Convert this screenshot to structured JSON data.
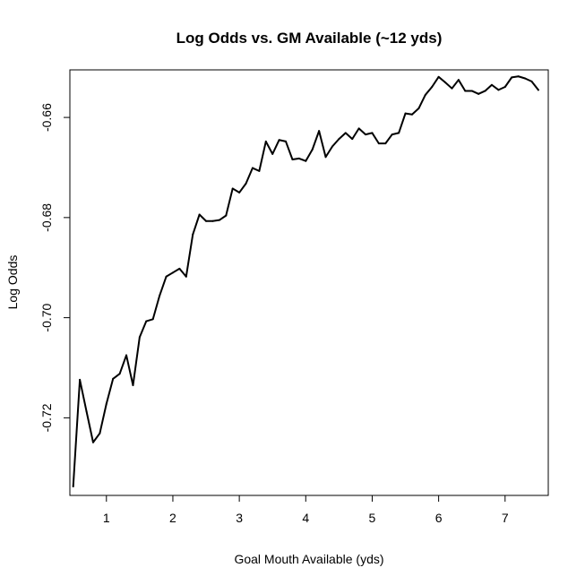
{
  "chart_data": {
    "type": "line",
    "title": "Log Odds vs. GM Available (~12 yds)",
    "xlabel": "Goal Mouth Available (yds)",
    "ylabel": "Log Odds",
    "xlim": [
      0.45,
      7.65
    ],
    "ylim": [
      -0.7355,
      -0.6505
    ],
    "x_ticks": [
      1,
      2,
      3,
      4,
      5,
      6,
      7
    ],
    "x_tick_labels": [
      "1",
      "2",
      "3",
      "4",
      "5",
      "6",
      "7"
    ],
    "y_ticks": [
      -0.72,
      -0.7,
      -0.68,
      -0.66
    ],
    "y_tick_labels": [
      "-0.72",
      "-0.70",
      "-0.68",
      "-0.66"
    ],
    "grid": false,
    "line_color": "#000000",
    "series": [
      {
        "x": [
          0.5,
          0.6,
          0.7,
          0.8,
          0.9,
          1.0,
          1.1,
          1.2,
          1.3,
          1.4,
          1.5,
          1.6,
          1.7,
          1.8,
          1.9,
          2.0,
          2.1,
          2.2,
          2.3,
          2.4,
          2.5,
          2.6,
          2.7,
          2.8,
          2.9,
          3.0,
          3.1,
          3.2,
          3.3,
          3.4,
          3.5,
          3.6,
          3.7,
          3.8,
          3.9,
          4.0,
          4.1,
          4.2,
          4.3,
          4.4,
          4.5,
          4.6,
          4.7,
          4.8,
          4.9,
          5.0,
          5.1,
          5.2,
          5.3,
          5.4,
          5.5,
          5.6,
          5.7,
          5.8,
          5.9,
          6.0,
          6.1,
          6.2,
          6.3,
          6.4,
          6.5,
          6.6,
          6.7,
          6.8,
          6.9,
          7.0,
          7.1,
          7.2,
          7.3,
          7.4,
          7.5
        ],
        "y": [
          -0.7337,
          -0.7124,
          -0.7187,
          -0.7249,
          -0.7231,
          -0.7172,
          -0.7122,
          -0.7112,
          -0.7075,
          -0.7135,
          -0.7039,
          -0.7007,
          -0.7003,
          -0.6956,
          -0.6918,
          -0.691,
          -0.6902,
          -0.6918,
          -0.6834,
          -0.6794,
          -0.6807,
          -0.6807,
          -0.6805,
          -0.6796,
          -0.6742,
          -0.675,
          -0.6732,
          -0.6701,
          -0.6707,
          -0.6648,
          -0.6673,
          -0.6645,
          -0.6648,
          -0.6684,
          -0.6682,
          -0.6687,
          -0.6664,
          -0.6627,
          -0.6679,
          -0.6658,
          -0.6643,
          -0.6631,
          -0.6643,
          -0.6622,
          -0.6634,
          -0.6631,
          -0.6652,
          -0.6652,
          -0.6634,
          -0.6631,
          -0.6592,
          -0.6594,
          -0.6582,
          -0.6555,
          -0.6539,
          -0.6519,
          -0.653,
          -0.6542,
          -0.6525,
          -0.6547,
          -0.6547,
          -0.6553,
          -0.6547,
          -0.6535,
          -0.6545,
          -0.6539,
          -0.652,
          -0.6518,
          -0.6522,
          -0.6528,
          -0.6545
        ]
      }
    ]
  }
}
